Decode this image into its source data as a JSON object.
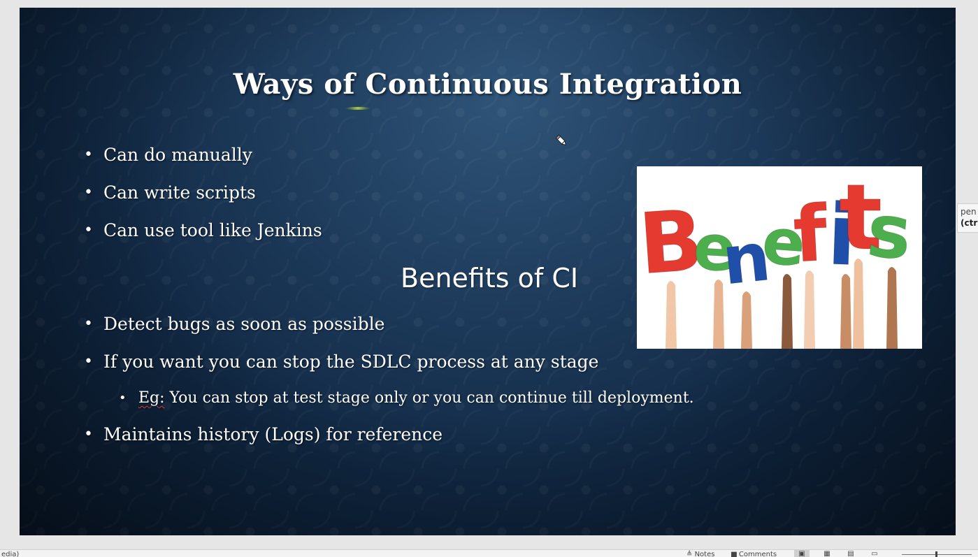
{
  "slide": {
    "title": "Ways of Continuous Integration",
    "ways": [
      "Can do manually",
      "Can write scripts",
      "Can use tool like Jenkins"
    ],
    "subtitle": "Benefits of CI",
    "benefits": {
      "item1": "Detect bugs as soon as possible",
      "item2": "If you want you can stop the SDLC process at any stage",
      "item2_sub_prefix": "Eg:",
      "item2_sub_text": " You can stop at test stage only or you can continue till deployment.",
      "item3": "Maintains history (Logs) for reference"
    },
    "bullet_glyph": "•",
    "image": {
      "word": "Benefits",
      "letters": [
        "B",
        "e",
        "n",
        "e",
        "f",
        "i",
        "t",
        "s"
      ],
      "letter_colors": [
        "#e53a2f",
        "#4cae4c",
        "#1f4fa8",
        "#4cae4c",
        "#e53a2f",
        "#1f4fa8",
        "#e53a2f",
        "#4cae4c"
      ]
    }
  },
  "tooltip": {
    "line1": "pen",
    "line2": "(ctrl"
  },
  "status_bar": {
    "left_text": "edia)",
    "notes_label": "Notes",
    "comments_label": "Comments"
  },
  "icons": {
    "pen_cursor": "pen-cursor-icon",
    "notes": "notes-icon",
    "comments": "comments-icon",
    "normal_view": "normal-view-icon",
    "slide_sorter": "slide-sorter-icon",
    "reading_view": "reading-view-icon",
    "slideshow": "slideshow-icon"
  }
}
